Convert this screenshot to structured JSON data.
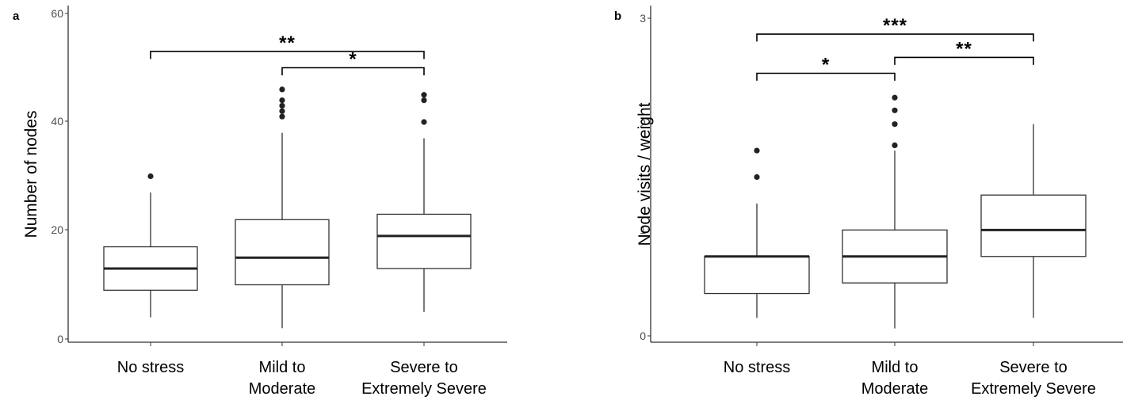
{
  "chart_data": [
    {
      "type": "box",
      "panel_label": "a",
      "ylabel": "Number of nodes",
      "xlabel": "",
      "ylim": [
        0,
        60
      ],
      "yticks": [
        "0",
        "20",
        "40",
        "60"
      ],
      "categories": [
        "No stress",
        "Mild to\nModerate",
        "Severe to\nExtremely Severe"
      ],
      "boxes": [
        {
          "whisker_low": 4,
          "q1": 9,
          "median": 13,
          "q3": 17,
          "whisker_high": 27,
          "outliers": [
            30
          ]
        },
        {
          "whisker_low": 2,
          "q1": 10,
          "median": 15,
          "q3": 22,
          "whisker_high": 38,
          "outliers": [
            41,
            42,
            43,
            44,
            46
          ]
        },
        {
          "whisker_low": 5,
          "q1": 13,
          "median": 19,
          "q3": 23,
          "whisker_high": 37,
          "outliers": [
            40,
            44,
            45
          ]
        }
      ],
      "significance": [
        {
          "from": 0,
          "to": 2,
          "label": "**",
          "y": 53,
          "tick_down": 1.4
        },
        {
          "from": 1,
          "to": 2,
          "label": "*",
          "y": 50,
          "tick_down": 1.4
        }
      ]
    },
    {
      "type": "box",
      "panel_label": "b",
      "ylabel": "Node visits / weight",
      "xlabel": "",
      "ylim": [
        0,
        3
      ],
      "yticks": [
        "0",
        "1",
        "2",
        "3"
      ],
      "categories": [
        "No stress",
        "Mild to\nModerate",
        "Severe to\nExtremely Severe"
      ],
      "boxes": [
        {
          "whisker_low": 0.17,
          "q1": 0.4,
          "median": 0.75,
          "q3": 0.75,
          "whisker_high": 1.25,
          "outliers": [
            1.5,
            1.75
          ]
        },
        {
          "whisker_low": 0.07,
          "q1": 0.5,
          "median": 0.75,
          "q3": 1.0,
          "whisker_high": 1.75,
          "outliers": [
            1.8,
            2.0,
            2.13,
            2.25
          ]
        },
        {
          "whisker_low": 0.17,
          "q1": 0.75,
          "median": 1.0,
          "q3": 1.33,
          "whisker_high": 2.0,
          "outliers": []
        }
      ],
      "significance": [
        {
          "from": 0,
          "to": 2,
          "label": "***",
          "y": 2.85,
          "tick_down": 0.07
        },
        {
          "from": 1,
          "to": 2,
          "label": "**",
          "y": 2.63,
          "tick_down": 0.07
        },
        {
          "from": 0,
          "to": 1,
          "label": "*",
          "y": 2.48,
          "tick_down": 0.07
        }
      ]
    }
  ]
}
